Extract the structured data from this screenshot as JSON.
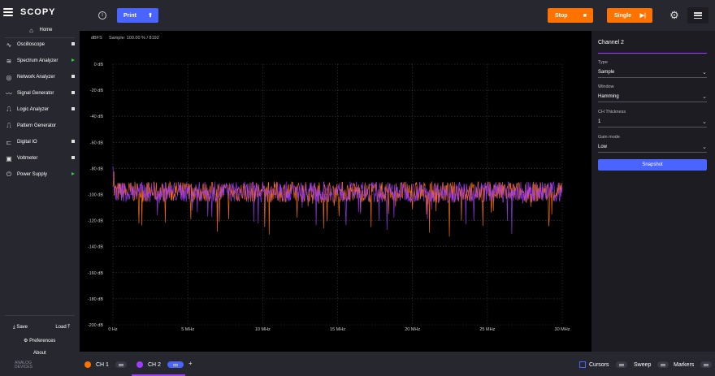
{
  "app": {
    "name": "SCOPY"
  },
  "sidebar": {
    "home_label": "Home",
    "items": [
      {
        "label": "Oscilloscope",
        "icon": "oscilloscope-icon",
        "status": "stopped"
      },
      {
        "label": "Spectrum Analyzer",
        "icon": "spectrum-icon",
        "status": "running"
      },
      {
        "label": "Network Analyzer",
        "icon": "network-icon",
        "status": "stopped"
      },
      {
        "label": "Signal Generator",
        "icon": "signal-icon",
        "status": "stopped"
      },
      {
        "label": "Logic Analyzer",
        "icon": "logic-icon",
        "status": "stopped"
      },
      {
        "label": "Pattern Generator",
        "icon": "pattern-icon",
        "status": "none"
      },
      {
        "label": "Digital IO",
        "icon": "digital-io-icon",
        "status": "stopped"
      },
      {
        "label": "Voltmeter",
        "icon": "voltmeter-icon",
        "status": "stopped"
      },
      {
        "label": "Power Supply",
        "icon": "power-icon",
        "status": "running"
      }
    ],
    "save_label": "Save",
    "load_label": "Load",
    "preferences_label": "Preferences",
    "about_label": "About",
    "vendor_line1": "ANALOG",
    "vendor_line2": "DEVICES"
  },
  "toolbar": {
    "print_label": "Print",
    "stop_label": "Stop",
    "single_label": "Single"
  },
  "plot": {
    "y_unit": "dBFS",
    "sample_info": "Sample: 100.00 % / 8192"
  },
  "right_panel": {
    "channel_title": "Channel 2",
    "fields": [
      {
        "label": "Type",
        "value": "Sample"
      },
      {
        "label": "Window",
        "value": "Hamming"
      },
      {
        "label": "CH Thickness",
        "value": "1"
      },
      {
        "label": "Gain mode",
        "value": "Low"
      }
    ],
    "snapshot_label": "Snapshot"
  },
  "bottom_bar": {
    "ch1_label": "CH 1",
    "ch2_label": "CH 2",
    "add_label": "+",
    "cursors_label": "Cursors",
    "sweep_label": "Sweep",
    "markers_label": "Markers"
  },
  "colors": {
    "ch1": "#ff7200",
    "ch2": "#a03cff",
    "accent": "#4a64ff",
    "action": "#ff7200"
  },
  "chart_data": {
    "type": "line",
    "xlabel": "",
    "ylabel": "dBFS",
    "xlim": [
      0,
      30
    ],
    "ylim": [
      -200,
      0
    ],
    "x_tick_labels": [
      "0 Hz",
      "5 MHz",
      "10 MHz",
      "15 MHz",
      "20 MHz",
      "25 MHz",
      "30 MHz"
    ],
    "x_tick_values": [
      0,
      5,
      10,
      15,
      20,
      25,
      30
    ],
    "y_tick_labels": [
      "0 dB",
      "-20 dB",
      "-40 dB",
      "-60 dB",
      "-80 dB",
      "-100 dB",
      "-120 dB",
      "-140 dB",
      "-160 dB",
      "-180 dB",
      "-200 dB"
    ],
    "y_tick_values": [
      0,
      -20,
      -40,
      -60,
      -80,
      -100,
      -120,
      -140,
      -160,
      -180,
      -200
    ],
    "grid": true,
    "series": [
      {
        "name": "CH 1",
        "color": "#ff7200",
        "noise_floor_db": -98,
        "spread_db": 10
      },
      {
        "name": "CH 2",
        "color": "#a03cff",
        "noise_floor_db": -98,
        "spread_db": 10
      }
    ]
  }
}
